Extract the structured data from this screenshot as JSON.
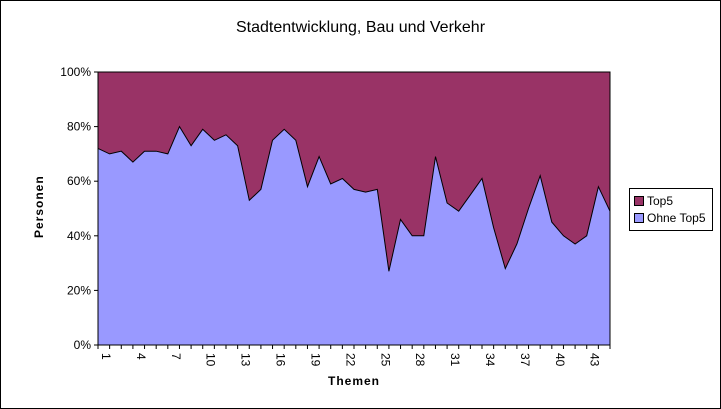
{
  "chart": {
    "title": "Stadtentwicklung, Bau und Verkehr",
    "xlabel": "Themen",
    "ylabel": "Personen",
    "yticks": [
      "0%",
      "20%",
      "40%",
      "60%",
      "80%",
      "100%"
    ],
    "xtick_labels": [
      "1",
      "4",
      "7",
      "10",
      "13",
      "16",
      "19",
      "22",
      "25",
      "28",
      "31",
      "34",
      "37",
      "40",
      "43"
    ],
    "legend": [
      {
        "label": "Top5",
        "color": "#993366"
      },
      {
        "label": "Ohne Top5",
        "color": "#9999FF"
      }
    ]
  },
  "chart_data": {
    "type": "area",
    "stacked": "percent",
    "title": "Stadtentwicklung, Bau und Verkehr",
    "xlabel": "Themen",
    "ylabel": "Personen",
    "ylim": [
      0,
      100
    ],
    "y_format": "percent",
    "grid": false,
    "legend_position": "right",
    "x": [
      1,
      2,
      3,
      4,
      5,
      6,
      7,
      8,
      9,
      10,
      11,
      12,
      13,
      14,
      15,
      16,
      17,
      18,
      19,
      20,
      21,
      22,
      23,
      24,
      25,
      26,
      27,
      28,
      29,
      30,
      31,
      32,
      33,
      34,
      35,
      36,
      37,
      38,
      39,
      40,
      41,
      42,
      43,
      44,
      45
    ],
    "series": [
      {
        "name": "Ohne Top5",
        "color": "#9999FF",
        "values": [
          72,
          70,
          71,
          67,
          71,
          71,
          70,
          80,
          73,
          79,
          75,
          77,
          73,
          53,
          57,
          75,
          79,
          75,
          58,
          69,
          59,
          61,
          57,
          56,
          57,
          27,
          46,
          40,
          40,
          69,
          52,
          49,
          55,
          61,
          43,
          28,
          37,
          50,
          62,
          45,
          40,
          37,
          40,
          58,
          49
        ]
      },
      {
        "name": "Top5",
        "color": "#993366",
        "values": [
          28,
          30,
          29,
          33,
          29,
          29,
          30,
          20,
          27,
          21,
          25,
          23,
          27,
          47,
          43,
          25,
          21,
          25,
          42,
          31,
          41,
          39,
          43,
          44,
          43,
          73,
          54,
          60,
          60,
          31,
          48,
          51,
          45,
          39,
          57,
          72,
          63,
          50,
          38,
          55,
          60,
          63,
          60,
          42,
          51
        ]
      }
    ]
  }
}
